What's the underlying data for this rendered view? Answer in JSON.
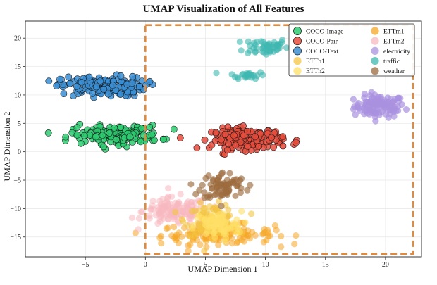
{
  "chart_data": {
    "type": "scatter",
    "title": "UMAP Visualization of All Features",
    "xlabel": "UMAP Dimension 1",
    "ylabel": "UMAP Dimension 2",
    "xlim": [
      -10,
      23
    ],
    "ylim": [
      -18.5,
      23
    ],
    "xticks": [
      -5,
      0,
      5,
      10,
      15,
      20
    ],
    "yticks": [
      -15,
      -10,
      -5,
      0,
      5,
      10,
      15,
      20
    ],
    "xtick_labels": [
      "−5",
      "0",
      "5",
      "10",
      "15",
      "20"
    ],
    "ytick_labels": [
      "−15",
      "−10",
      "−5",
      "0",
      "5",
      "10",
      "15",
      "20"
    ],
    "grid": true,
    "legend_position": "top-right",
    "highlight_box": {
      "x_range": [
        0,
        22.3
      ],
      "y_range": [
        -18,
        22.3
      ],
      "color": "#e08a3c",
      "style": "dashed"
    },
    "series": [
      {
        "name": "COCO-Image",
        "color": "#2ecc71",
        "clusters": [
          {
            "cx": -2.5,
            "cy": 3.0,
            "sx": 3.0,
            "sy": 1.3,
            "n": 160
          }
        ],
        "edge": true,
        "alpha": 0.85
      },
      {
        "name": "COCO-Pair",
        "color": "#e74c3c",
        "clusters": [
          {
            "cx": 8.5,
            "cy": 2.3,
            "sx": 2.4,
            "sy": 1.5,
            "n": 170
          }
        ],
        "edge": true,
        "alpha": 0.85
      },
      {
        "name": "COCO-Text",
        "color": "#3a8fd6",
        "clusters": [
          {
            "cx": -3.5,
            "cy": 11.5,
            "sx": 2.8,
            "sy": 1.4,
            "n": 170
          }
        ],
        "edge": true,
        "alpha": 0.85
      },
      {
        "name": "ETTh1",
        "color": "#f4c542",
        "clusters": [
          {
            "cx": 5.5,
            "cy": -12.0,
            "sx": 1.7,
            "sy": 2.2,
            "n": 90
          }
        ],
        "edge": false,
        "alpha": 0.6
      },
      {
        "name": "ETTh2",
        "color": "#ffe066",
        "clusters": [
          {
            "cx": 6.0,
            "cy": -13.0,
            "sx": 1.6,
            "sy": 2.0,
            "n": 80
          }
        ],
        "edge": false,
        "alpha": 0.6
      },
      {
        "name": "ETTm1",
        "color": "#f5a623",
        "clusters": [
          {
            "cx": 6.0,
            "cy": -14.5,
            "sx": 3.8,
            "sy": 1.4,
            "n": 150
          }
        ],
        "edge": false,
        "alpha": 0.55
      },
      {
        "name": "ETTm2",
        "color": "#f7b8c0",
        "clusters": [
          {
            "cx": 2.5,
            "cy": -10.5,
            "sx": 2.2,
            "sy": 2.0,
            "n": 130
          }
        ],
        "edge": false,
        "alpha": 0.55
      },
      {
        "name": "electricity",
        "color": "#a991e0",
        "clusters": [
          {
            "cx": 19.5,
            "cy": 8.0,
            "sx": 1.7,
            "sy": 1.6,
            "n": 110
          }
        ],
        "edge": false,
        "alpha": 0.7
      },
      {
        "name": "traffic",
        "color": "#3fb8b0",
        "clusters": [
          {
            "cx": 10.0,
            "cy": 18.5,
            "sx": 1.5,
            "sy": 1.3,
            "n": 50
          },
          {
            "cx": 8.5,
            "cy": 13.5,
            "sx": 1.2,
            "sy": 0.5,
            "n": 25
          }
        ],
        "edge": false,
        "alpha": 0.6
      },
      {
        "name": "weather",
        "color": "#9c6b3e",
        "clusters": [
          {
            "cx": 6.5,
            "cy": -6.0,
            "sx": 1.5,
            "sy": 2.0,
            "n": 75
          }
        ],
        "edge": false,
        "alpha": 0.65
      }
    ]
  }
}
